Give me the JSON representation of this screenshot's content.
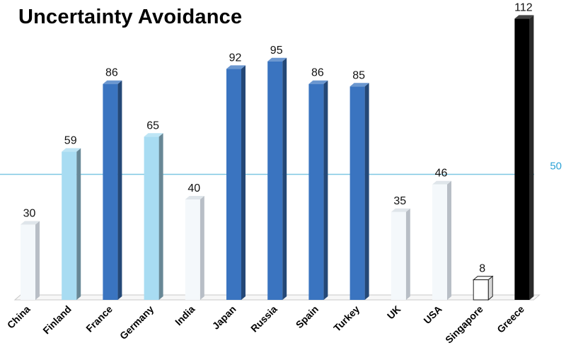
{
  "chart_data": {
    "type": "bar",
    "title": "Uncertainty Avoidance",
    "categories": [
      "China",
      "Finland",
      "France",
      "Germany",
      "India",
      "Japan",
      "Russia",
      "Spain",
      "Turkey",
      "UK",
      "USA",
      "Singapore",
      "Greece"
    ],
    "values": [
      30,
      59,
      86,
      65,
      40,
      92,
      95,
      86,
      85,
      35,
      46,
      8,
      112
    ],
    "reference_line": {
      "value": 50,
      "label": "50",
      "color": "#7ec8e3"
    },
    "value_labels": [
      "30",
      "59",
      "86",
      "65",
      "40",
      "92",
      "95",
      "86",
      "85",
      "35",
      "46",
      "8",
      "112"
    ],
    "bar_colors": [
      "#f4f8fb",
      "#a8dcf2",
      "#3a74c0",
      "#a8dcf2",
      "#f4f8fb",
      "#3a74c0",
      "#3a74c0",
      "#3a74c0",
      "#3a74c0",
      "#f4f8fb",
      "#f4f8fb",
      "#ffffff",
      "#000000"
    ],
    "ylim": [
      0,
      112
    ],
    "xlabel": "",
    "ylabel": "",
    "grid": false,
    "legend": "none"
  }
}
